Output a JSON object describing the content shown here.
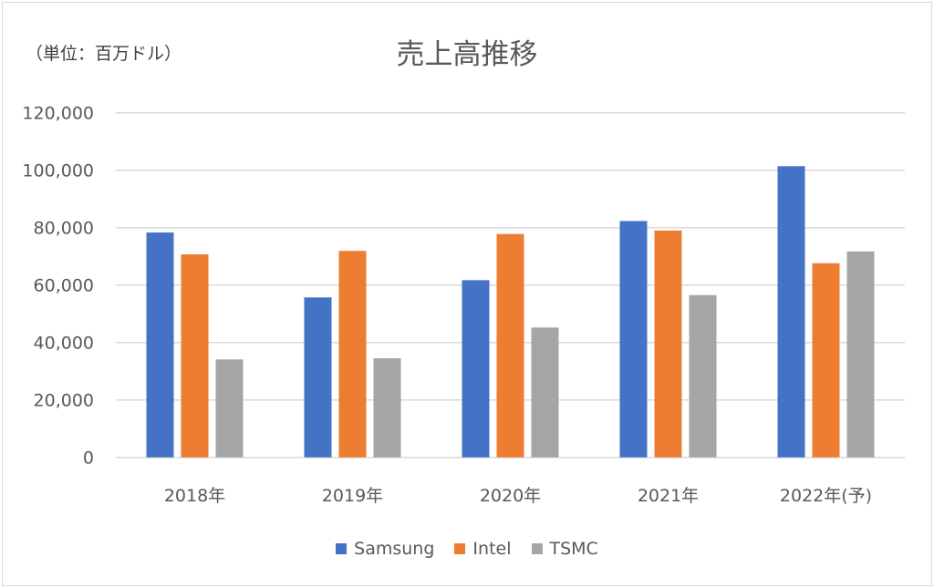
{
  "chart_data": {
    "type": "bar",
    "title": "売上高推移",
    "unit_label": "（単位：百万ドル）",
    "categories": [
      "2018年",
      "2019年",
      "2020年",
      "2021年",
      "2022年(予)"
    ],
    "series": [
      {
        "name": "Samsung",
        "color": "#4472c4",
        "values": [
          78300,
          55700,
          61700,
          82300,
          101400
        ]
      },
      {
        "name": "Intel",
        "color": "#ed7d31",
        "values": [
          70700,
          71900,
          77800,
          79000,
          67600
        ]
      },
      {
        "name": "TSMC",
        "color": "#a5a5a5",
        "values": [
          34100,
          34500,
          45200,
          56500,
          71700
        ]
      }
    ],
    "ylim": [
      0,
      120000
    ],
    "yticks": [
      0,
      20000,
      40000,
      60000,
      80000,
      100000,
      120000
    ],
    "ytick_labels": [
      "0",
      "20,000",
      "40,000",
      "60,000",
      "80,000",
      "100,000",
      "120,000"
    ],
    "grid": true,
    "legend_position": "bottom"
  }
}
